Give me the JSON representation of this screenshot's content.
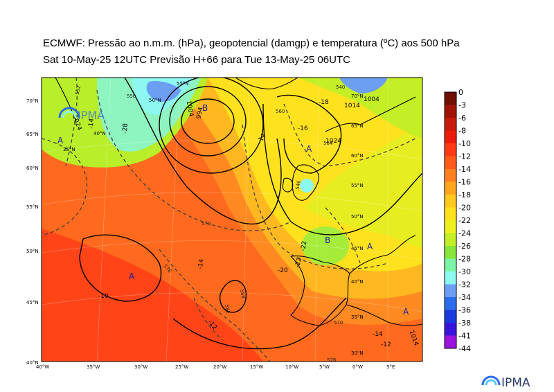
{
  "title": {
    "line1": "ECMWF:  Pressão ao n.m.m. (hPa), geopotencial (damgp) e temperatura (ºC) aos 500 hPa",
    "line2": "Sat 10-May-25 12UTC Previsão H+66 para Tue 13-May-25 06UTC"
  },
  "map": {
    "lon_ticks": [
      "40°W",
      "35°W",
      "30°W",
      "25°W",
      "20°W",
      "15°W",
      "10°W",
      "5°W",
      "0°W",
      "5°E"
    ],
    "lat_ticks": [
      "70°N",
      "65°N",
      "60°N",
      "55°N",
      "50°N",
      "45°N",
      "40°N"
    ],
    "grid_labels": [
      "55°N",
      "50°N",
      "40°N",
      "35°N",
      "65°N",
      "60°N",
      "55°N",
      "50°N",
      "45°N",
      "40°N",
      "35°N",
      "30°N",
      "70°N"
    ],
    "pressure_centers": [
      {
        "label": "A"
      },
      {
        "label": "A"
      },
      {
        "label": "A"
      },
      {
        "label": "B"
      },
      {
        "label": "B"
      },
      {
        "label": "A"
      },
      {
        "label": "A"
      }
    ],
    "temperature_labels": [
      "-10",
      "-14",
      "-12",
      "-18",
      "-20",
      "-22",
      "-14",
      "-16",
      "-14",
      "-12",
      "-28",
      "-14",
      "-22"
    ],
    "isobar_labels": [
      "1024",
      "1004",
      "994",
      "1004",
      "1014",
      "1024",
      "1014"
    ],
    "geopotential_labels": [
      "570",
      "576",
      "582",
      "588",
      "560",
      "550",
      "546",
      "540",
      "564",
      "552",
      "570",
      "576"
    ]
  },
  "colorbar": {
    "labels": [
      "0",
      "-3",
      "-6",
      "-8",
      "-10",
      "-12",
      "-14",
      "-16",
      "-18",
      "-20",
      "-22",
      "-24",
      "-26",
      "-28",
      "-30",
      "-32",
      "-34",
      "-36",
      "-38",
      "-41",
      "-44"
    ],
    "colors": [
      "#6e0f00",
      "#a01408",
      "#c81a0a",
      "#ec1c0c",
      "#ff3a14",
      "#ff5a1a",
      "#ff8020",
      "#ffa61e",
      "#ffc81e",
      "#ffe21e",
      "#eef01e",
      "#c4ee26",
      "#88e63a",
      "#7cf4a6",
      "#8cf8f0",
      "#6c9ef2",
      "#2a6cec",
      "#1a3ae0",
      "#3a14dc",
      "#9a14e0",
      "#f014f8"
    ]
  },
  "logo": {
    "text": "IPMA",
    "watermark_text": "IPMA"
  }
}
